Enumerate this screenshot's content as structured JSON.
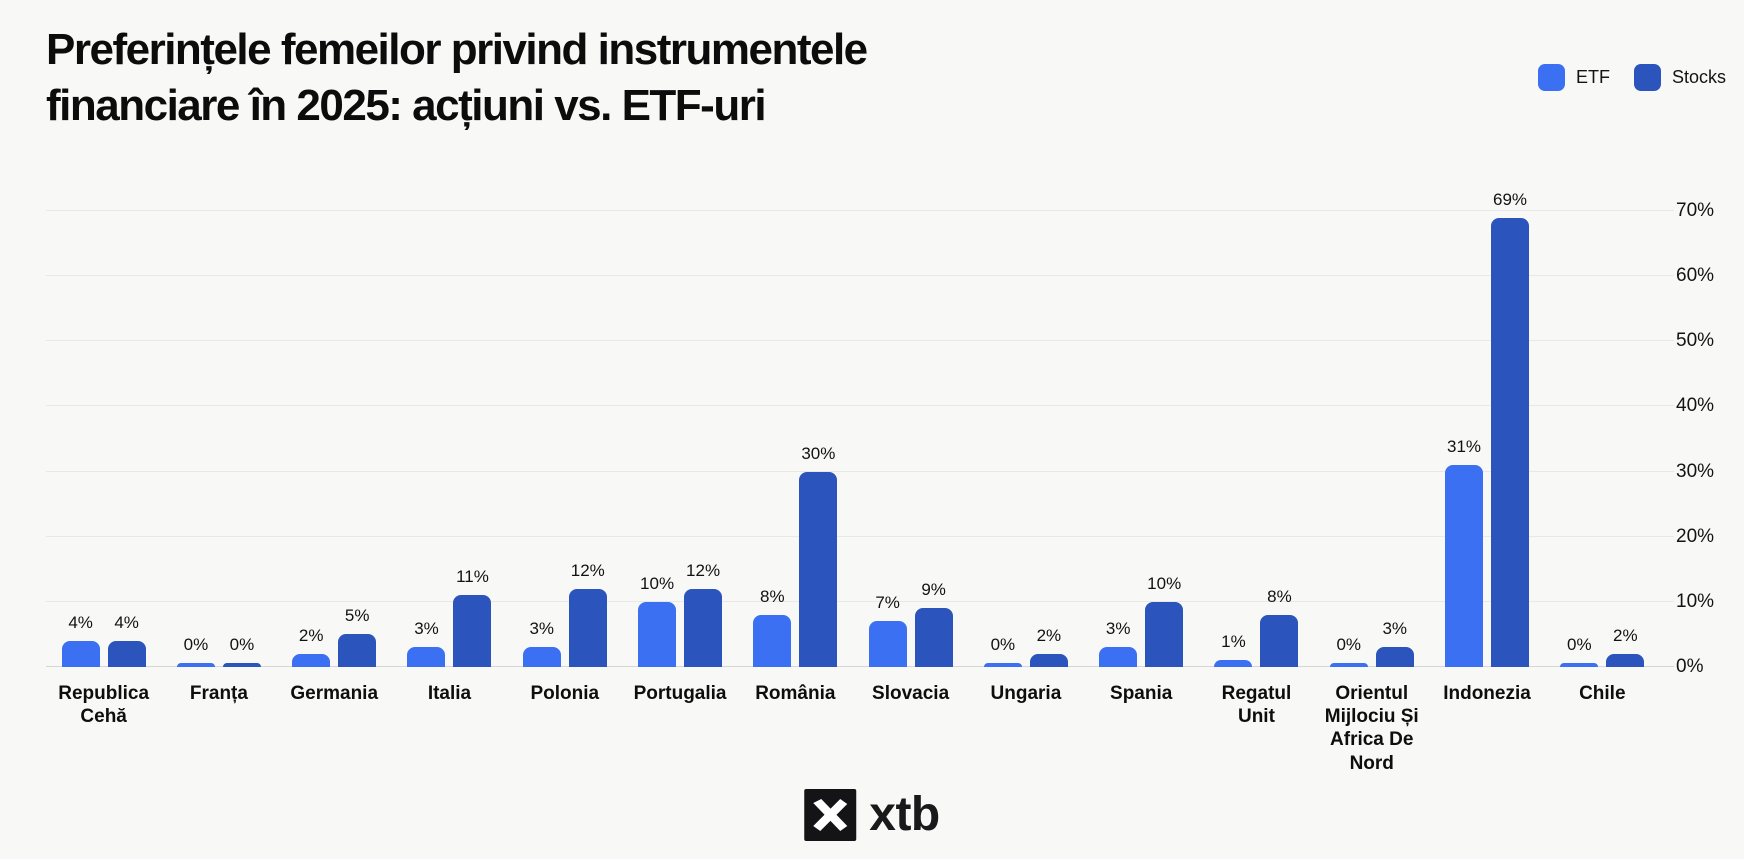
{
  "title": {
    "line1": "Preferințele femeilor privind instrumentele",
    "line2": "financiare în 2025: acțiuni vs. ETF-uri"
  },
  "footer": {
    "brand": "xtb",
    "logo_icon": "xtb-x-mark"
  },
  "colors": {
    "etf": "#3C70F2",
    "stocks": "#2B54BC",
    "background": "#F8F8F7",
    "gridline": "#E9E8E6",
    "baseline": "#D7D6D4",
    "text": "#111111"
  },
  "chart_data": {
    "type": "bar",
    "title": "Preferințele femeilor privind instrumentele financiare în 2025: acțiuni vs. ETF-uri",
    "categories": [
      "Republica Cehă",
      "Franța",
      "Germania",
      "Italia",
      "Polonia",
      "Portugalia",
      "România",
      "Slovacia",
      "Ungaria",
      "Spania",
      "Regatul Unit",
      "Orientul Mijlociu Și Africa De Nord",
      "Indonezia",
      "Chile"
    ],
    "series": [
      {
        "name": "ETF",
        "color": "#3C70F2",
        "values": [
          4,
          0,
          2,
          3,
          3,
          10,
          8,
          7,
          0,
          3,
          1,
          0,
          31,
          0
        ]
      },
      {
        "name": "Stocks",
        "color": "#2B54BC",
        "values": [
          4,
          0,
          5,
          11,
          12,
          12,
          30,
          9,
          2,
          10,
          8,
          3,
          69,
          2
        ]
      }
    ],
    "value_suffix": "%",
    "yticks": [
      {
        "v": 0,
        "label": "0%"
      },
      {
        "v": 10,
        "label": "10%"
      },
      {
        "v": 20,
        "label": "20%"
      },
      {
        "v": 30,
        "label": "30%"
      },
      {
        "v": 40,
        "label": "40%"
      },
      {
        "v": 50,
        "label": "50%"
      },
      {
        "v": 60,
        "label": "60%"
      },
      {
        "v": 70,
        "label": "70%"
      }
    ],
    "ylim": [
      0,
      70
    ],
    "xlabel": "",
    "ylabel": "",
    "grid": true,
    "axis_side": "right",
    "legend_position": "top-right"
  }
}
